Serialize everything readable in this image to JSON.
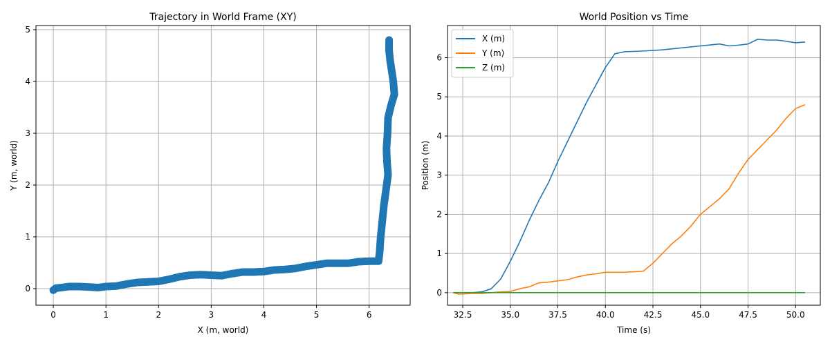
{
  "chart_data": [
    {
      "type": "scatter",
      "title": "Trajectory in World Frame (XY)",
      "xlabel": "X (m, world)",
      "ylabel": "Y (m, world)",
      "xlim": [
        -0.33,
        6.78
      ],
      "ylim": [
        -0.32,
        5.08
      ],
      "xticks": [
        0,
        1,
        2,
        3,
        4,
        5,
        6
      ],
      "yticks": [
        0,
        1,
        2,
        3,
        4,
        5
      ],
      "grid": true,
      "color": "#1f77b4",
      "series": [
        {
          "points": [
            [
              0.0,
              -0.03
            ],
            [
              0.05,
              0.01
            ],
            [
              0.15,
              0.02
            ],
            [
              0.3,
              0.04
            ],
            [
              0.5,
              0.04
            ],
            [
              0.7,
              0.03
            ],
            [
              0.85,
              0.02
            ],
            [
              1.0,
              0.04
            ],
            [
              1.2,
              0.05
            ],
            [
              1.4,
              0.09
            ],
            [
              1.6,
              0.12
            ],
            [
              1.8,
              0.13
            ],
            [
              2.0,
              0.14
            ],
            [
              2.2,
              0.18
            ],
            [
              2.4,
              0.23
            ],
            [
              2.6,
              0.26
            ],
            [
              2.8,
              0.27
            ],
            [
              3.0,
              0.26
            ],
            [
              3.2,
              0.25
            ],
            [
              3.4,
              0.29
            ],
            [
              3.6,
              0.32
            ],
            [
              3.8,
              0.32
            ],
            [
              4.0,
              0.33
            ],
            [
              4.2,
              0.36
            ],
            [
              4.4,
              0.37
            ],
            [
              4.6,
              0.39
            ],
            [
              4.8,
              0.43
            ],
            [
              5.0,
              0.46
            ],
            [
              5.2,
              0.49
            ],
            [
              5.4,
              0.49
            ],
            [
              5.6,
              0.49
            ],
            [
              5.8,
              0.52
            ],
            [
              6.0,
              0.53
            ],
            [
              6.18,
              0.53
            ],
            [
              6.2,
              0.7
            ],
            [
              6.22,
              1.0
            ],
            [
              6.25,
              1.3
            ],
            [
              6.28,
              1.6
            ],
            [
              6.32,
              1.9
            ],
            [
              6.36,
              2.2
            ],
            [
              6.34,
              2.45
            ],
            [
              6.33,
              2.7
            ],
            [
              6.35,
              3.0
            ],
            [
              6.36,
              3.3
            ],
            [
              6.42,
              3.55
            ],
            [
              6.48,
              3.75
            ],
            [
              6.46,
              4.0
            ],
            [
              6.43,
              4.2
            ],
            [
              6.4,
              4.4
            ],
            [
              6.38,
              4.6
            ],
            [
              6.38,
              4.8
            ]
          ]
        }
      ]
    },
    {
      "type": "line",
      "title": "World Position vs Time",
      "xlabel": "Time (s)",
      "ylabel": "Position (m)",
      "xlim": [
        31.7,
        51.3
      ],
      "ylim": [
        -0.32,
        6.82
      ],
      "xticks": [
        32.5,
        35.0,
        37.5,
        40.0,
        42.5,
        45.0,
        47.5,
        50.0
      ],
      "yticks": [
        0,
        1,
        2,
        3,
        4,
        5,
        6
      ],
      "grid": true,
      "legend": "top-left",
      "series": [
        {
          "name": "X (m)",
          "color": "#1f77b4",
          "points": [
            [
              32.0,
              0.0
            ],
            [
              33.0,
              0.0
            ],
            [
              33.5,
              0.02
            ],
            [
              34.0,
              0.1
            ],
            [
              34.5,
              0.35
            ],
            [
              35.0,
              0.8
            ],
            [
              35.5,
              1.3
            ],
            [
              36.0,
              1.85
            ],
            [
              36.5,
              2.35
            ],
            [
              37.0,
              2.8
            ],
            [
              37.5,
              3.35
            ],
            [
              38.0,
              3.85
            ],
            [
              38.5,
              4.35
            ],
            [
              39.0,
              4.85
            ],
            [
              39.5,
              5.3
            ],
            [
              40.0,
              5.75
            ],
            [
              40.5,
              6.1
            ],
            [
              41.0,
              6.15
            ],
            [
              42.0,
              6.17
            ],
            [
              43.0,
              6.2
            ],
            [
              44.0,
              6.25
            ],
            [
              45.0,
              6.3
            ],
            [
              46.0,
              6.35
            ],
            [
              46.5,
              6.3
            ],
            [
              47.0,
              6.32
            ],
            [
              47.5,
              6.35
            ],
            [
              48.0,
              6.47
            ],
            [
              48.5,
              6.45
            ],
            [
              49.0,
              6.45
            ],
            [
              49.5,
              6.42
            ],
            [
              50.0,
              6.38
            ],
            [
              50.5,
              6.4
            ]
          ]
        },
        {
          "name": "Y (m)",
          "color": "#ff7f0e",
          "points": [
            [
              32.0,
              0.0
            ],
            [
              32.3,
              -0.04
            ],
            [
              33.0,
              -0.02
            ],
            [
              33.5,
              -0.02
            ],
            [
              34.0,
              0.0
            ],
            [
              34.5,
              0.02
            ],
            [
              35.0,
              0.03
            ],
            [
              35.5,
              0.1
            ],
            [
              36.0,
              0.15
            ],
            [
              36.5,
              0.25
            ],
            [
              37.0,
              0.27
            ],
            [
              37.5,
              0.3
            ],
            [
              38.0,
              0.33
            ],
            [
              38.5,
              0.4
            ],
            [
              39.0,
              0.45
            ],
            [
              39.5,
              0.48
            ],
            [
              40.0,
              0.52
            ],
            [
              41.0,
              0.52
            ],
            [
              42.0,
              0.55
            ],
            [
              42.5,
              0.75
            ],
            [
              43.0,
              1.0
            ],
            [
              43.5,
              1.25
            ],
            [
              44.0,
              1.45
            ],
            [
              44.5,
              1.7
            ],
            [
              45.0,
              2.0
            ],
            [
              45.5,
              2.2
            ],
            [
              46.0,
              2.4
            ],
            [
              46.5,
              2.65
            ],
            [
              47.0,
              3.05
            ],
            [
              47.5,
              3.4
            ],
            [
              48.0,
              3.65
            ],
            [
              48.5,
              3.9
            ],
            [
              49.0,
              4.15
            ],
            [
              49.5,
              4.45
            ],
            [
              50.0,
              4.7
            ],
            [
              50.5,
              4.8
            ]
          ]
        },
        {
          "name": "Z (m)",
          "color": "#2ca02c",
          "points": [
            [
              32.0,
              0.0
            ],
            [
              50.5,
              0.0
            ]
          ]
        }
      ]
    }
  ]
}
